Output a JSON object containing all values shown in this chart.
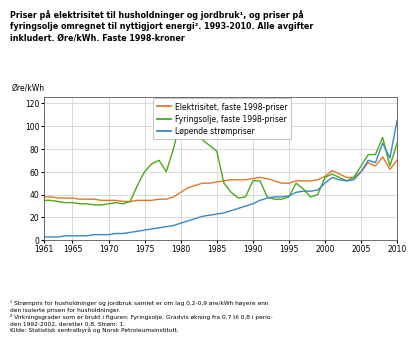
{
  "title_lines": [
    "Priser på elektrisitet til husholdninger og jordbruk¹, og priser på",
    "fyringsolje omregnet til nyttigjort energi². 1993-2010. Alle avgifter",
    "inkludert. Øre/kWh. Faste 1998-kroner"
  ],
  "ylabel": "Øre/kWh",
  "xlabel_ticks": [
    1961,
    1965,
    1970,
    1975,
    1980,
    1985,
    1990,
    1995,
    2000,
    2005,
    2010
  ],
  "ylim": [
    0,
    125
  ],
  "yticks": [
    0,
    20,
    40,
    60,
    80,
    100,
    120
  ],
  "footnote1": "¹ Strømpris for husholdninger og jordbruk samlet er om lag 0,2-0,9 øre/kWh høyere enn",
  "footnote1b": "den isolerte prisen for husholdninger.",
  "footnote2": "² Virkningsgrader som er brukt i figuren: Fyringsolje: Gradvis økning fra 0,7 til 0,8 i perio-",
  "footnote2b": "den 1992-2002, deretter 0,8. Strøm: 1.",
  "footnote3": "Kilde: Statistisk sentralbyrå og Norsk Petroleumsinstitutt.",
  "legend": [
    {
      "label": "Elektrisitet, faste 1998-priser",
      "color": "#e07828"
    },
    {
      "label": "Fyringsolje, faste 1998-priser",
      "color": "#4aaa18"
    },
    {
      "label": "Løpende strømpriser",
      "color": "#3888c8"
    }
  ],
  "elec_years": [
    1961,
    1962,
    1963,
    1964,
    1965,
    1966,
    1967,
    1968,
    1969,
    1970,
    1971,
    1972,
    1973,
    1974,
    1975,
    1976,
    1977,
    1978,
    1979,
    1980,
    1981,
    1982,
    1983,
    1984,
    1985,
    1986,
    1987,
    1988,
    1989,
    1990,
    1991,
    1992,
    1993,
    1994,
    1995,
    1996,
    1997,
    1998,
    1999,
    2000,
    2001,
    2002,
    2003,
    2004,
    2005,
    2006,
    2007,
    2008,
    2009,
    2010
  ],
  "elec_values": [
    38,
    38,
    37,
    37,
    37,
    36,
    36,
    36,
    35,
    35,
    35,
    34,
    34,
    35,
    35,
    35,
    36,
    36,
    38,
    42,
    46,
    48,
    50,
    50,
    51,
    52,
    53,
    53,
    53,
    54,
    55,
    54,
    52,
    50,
    50,
    52,
    52,
    52,
    53,
    56,
    61,
    58,
    55,
    55,
    60,
    68,
    65,
    73,
    62,
    70
  ],
  "oil_years": [
    1961,
    1962,
    1963,
    1964,
    1965,
    1966,
    1967,
    1968,
    1969,
    1970,
    1971,
    1972,
    1973,
    1974,
    1975,
    1976,
    1977,
    1978,
    1979,
    1980,
    1981,
    1982,
    1983,
    1984,
    1985,
    1986,
    1987,
    1988,
    1989,
    1990,
    1991,
    1992,
    1993,
    1994,
    1995,
    1996,
    1997,
    1998,
    1999,
    2000,
    2001,
    2002,
    2003,
    2004,
    2005,
    2006,
    2007,
    2008,
    2009,
    2010
  ],
  "oil_values": [
    35,
    35,
    34,
    33,
    33,
    32,
    32,
    31,
    31,
    32,
    33,
    32,
    34,
    48,
    60,
    67,
    70,
    60,
    80,
    105,
    105,
    98,
    88,
    83,
    78,
    50,
    42,
    37,
    38,
    52,
    52,
    38,
    36,
    36,
    38,
    50,
    45,
    38,
    40,
    55,
    58,
    55,
    52,
    55,
    65,
    75,
    75,
    90,
    65,
    85
  ],
  "lopende_years": [
    1961,
    1962,
    1963,
    1964,
    1965,
    1966,
    1967,
    1968,
    1969,
    1970,
    1971,
    1972,
    1973,
    1974,
    1975,
    1976,
    1977,
    1978,
    1979,
    1980,
    1981,
    1982,
    1983,
    1984,
    1985,
    1986,
    1987,
    1988,
    1989,
    1990,
    1991,
    1992,
    1993,
    1994,
    1995,
    1996,
    1997,
    1998,
    1999,
    2000,
    2001,
    2002,
    2003,
    2004,
    2005,
    2006,
    2007,
    2008,
    2009,
    2010
  ],
  "lopende_values": [
    3,
    3,
    3,
    4,
    4,
    4,
    4,
    5,
    5,
    5,
    6,
    6,
    7,
    8,
    9,
    10,
    11,
    12,
    13,
    15,
    17,
    19,
    21,
    22,
    23,
    24,
    26,
    28,
    30,
    32,
    35,
    37,
    38,
    38,
    39,
    42,
    43,
    43,
    44,
    50,
    55,
    53,
    52,
    53,
    60,
    70,
    68,
    85,
    72,
    105
  ]
}
